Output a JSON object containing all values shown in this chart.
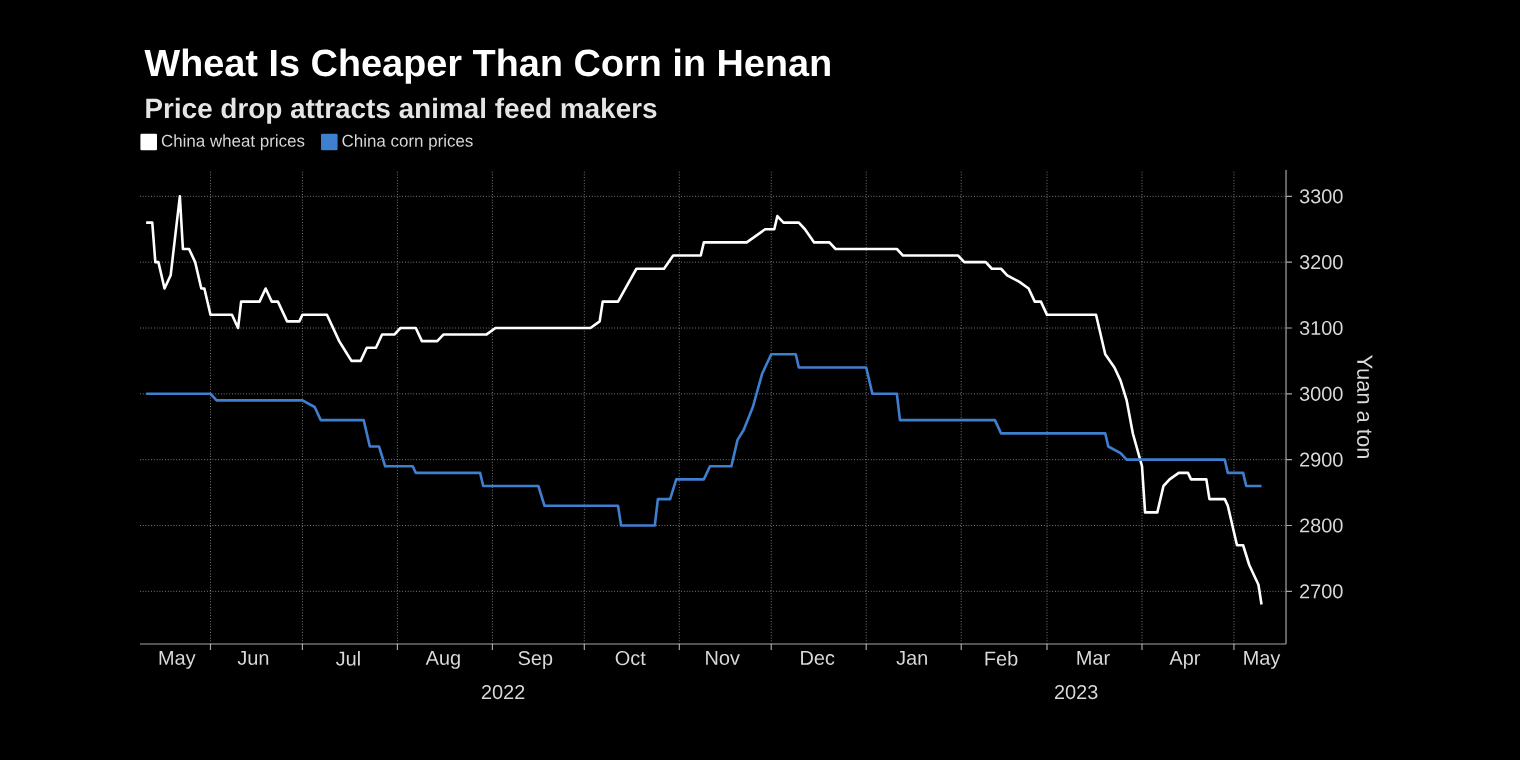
{
  "chart_data": {
    "type": "line",
    "title": "Wheat Is Cheaper Than Corn in Henan",
    "subtitle": "Price drop attracts animal feed makers",
    "ylabel": "Yuan a ton",
    "xlim": [
      "2022-05-09",
      "2023-05-18"
    ],
    "ylim": [
      2620,
      3340
    ],
    "yticks": [
      2700,
      2800,
      2900,
      3000,
      3100,
      3200,
      3300
    ],
    "xticks": [
      {
        "value": "2022-06-01",
        "label": null
      },
      {
        "value": "2022-07-01",
        "label": null
      },
      {
        "value": "2022-08-01",
        "label": null
      },
      {
        "value": "2022-09-01",
        "label": null
      },
      {
        "value": "2022-10-01",
        "label": null
      },
      {
        "value": "2022-11-01",
        "label": null
      },
      {
        "value": "2022-12-01",
        "label": null
      },
      {
        "value": "2023-01-01",
        "label": null
      },
      {
        "value": "2023-02-01",
        "label": null
      },
      {
        "value": "2023-03-01",
        "label": null
      },
      {
        "value": "2023-04-01",
        "label": null
      },
      {
        "value": "2023-05-01",
        "label": null
      },
      {
        "value": "2022-05-21",
        "label": "May"
      },
      {
        "value": "2022-06-15",
        "label": "Jun"
      },
      {
        "value": "2022-07-16",
        "label": "Jul"
      },
      {
        "value": "2022-08-16",
        "label": "Aug"
      },
      {
        "value": "2022-09-15",
        "label": "Sep"
      },
      {
        "value": "2022-10-16",
        "label": "Oct"
      },
      {
        "value": "2022-11-15",
        "label": "Nov"
      },
      {
        "value": "2022-12-16",
        "label": "Dec"
      },
      {
        "value": "2023-01-16",
        "label": "Jan"
      },
      {
        "value": "2023-02-14",
        "label": "Feb"
      },
      {
        "value": "2023-03-16",
        "label": "Mar"
      },
      {
        "value": "2023-04-15",
        "label": "Apr"
      },
      {
        "value": "2023-05-10",
        "label": "May"
      }
    ],
    "series": [
      {
        "name": "China wheat prices",
        "color": "#ffffff",
        "x": [
          "2022-05-11",
          "2022-05-13",
          "2022-05-14",
          "2022-05-15",
          "2022-05-17",
          "2022-05-19",
          "2022-05-22",
          "2022-05-23",
          "2022-05-25",
          "2022-05-27",
          "2022-05-29",
          "2022-05-30",
          "2022-06-01",
          "2022-06-08",
          "2022-06-10",
          "2022-06-11",
          "2022-06-17",
          "2022-06-19",
          "2022-06-21",
          "2022-06-23",
          "2022-06-26",
          "2022-06-30",
          "2022-07-01",
          "2022-07-09",
          "2022-07-13",
          "2022-07-15",
          "2022-07-17",
          "2022-07-20",
          "2022-07-22",
          "2022-07-25",
          "2022-07-27",
          "2022-07-31",
          "2022-08-02",
          "2022-08-07",
          "2022-08-09",
          "2022-08-14",
          "2022-08-16",
          "2022-08-30",
          "2022-09-02",
          "2022-10-03",
          "2022-10-06",
          "2022-10-07",
          "2022-10-12",
          "2022-10-15",
          "2022-10-18",
          "2022-10-27",
          "2022-10-30",
          "2022-11-08",
          "2022-11-09",
          "2022-11-23",
          "2022-11-26",
          "2022-11-29",
          "2022-12-02",
          "2022-12-03",
          "2022-12-05",
          "2022-12-10",
          "2022-12-12",
          "2022-12-15",
          "2022-12-20",
          "2022-12-22",
          "2023-01-11",
          "2023-01-13",
          "2023-01-31",
          "2023-02-02",
          "2023-02-09",
          "2023-02-11",
          "2023-02-14",
          "2023-02-16",
          "2023-02-20",
          "2023-02-23",
          "2023-02-25",
          "2023-02-27",
          "2023-03-01",
          "2023-03-17",
          "2023-03-20",
          "2023-03-23",
          "2023-03-25",
          "2023-03-27",
          "2023-03-29",
          "2023-04-01",
          "2023-04-02",
          "2023-04-06",
          "2023-04-08",
          "2023-04-10",
          "2023-04-13",
          "2023-04-16",
          "2023-04-17",
          "2023-04-22",
          "2023-04-23",
          "2023-04-28",
          "2023-04-29",
          "2023-05-02",
          "2023-05-04",
          "2023-05-06",
          "2023-05-09",
          "2023-05-10"
        ],
        "values": [
          3260,
          3260,
          3200,
          3200,
          3160,
          3180,
          3300,
          3220,
          3220,
          3200,
          3160,
          3160,
          3120,
          3120,
          3100,
          3140,
          3140,
          3160,
          3140,
          3140,
          3110,
          3110,
          3120,
          3120,
          3080,
          3065,
          3050,
          3050,
          3070,
          3070,
          3090,
          3090,
          3100,
          3100,
          3080,
          3080,
          3090,
          3090,
          3100,
          3100,
          3110,
          3140,
          3140,
          3165,
          3190,
          3190,
          3210,
          3210,
          3230,
          3230,
          3240,
          3250,
          3250,
          3270,
          3260,
          3260,
          3250,
          3230,
          3230,
          3220,
          3220,
          3210,
          3210,
          3200,
          3200,
          3190,
          3190,
          3180,
          3170,
          3160,
          3140,
          3140,
          3120,
          3120,
          3060,
          3040,
          3020,
          2990,
          2940,
          2890,
          2820,
          2820,
          2860,
          2870,
          2880,
          2880,
          2870,
          2870,
          2840,
          2840,
          2830,
          2770,
          2770,
          2740,
          2710,
          2680
        ]
      },
      {
        "name": "China corn prices",
        "color": "#3f7fd0",
        "x": [
          "2022-05-11",
          "2022-06-01",
          "2022-06-03",
          "2022-07-01",
          "2022-07-05",
          "2022-07-07",
          "2022-07-21",
          "2022-07-23",
          "2022-07-26",
          "2022-07-28",
          "2022-08-06",
          "2022-08-07",
          "2022-08-28",
          "2022-08-29",
          "2022-09-16",
          "2022-09-18",
          "2022-10-12",
          "2022-10-13",
          "2022-10-24",
          "2022-10-25",
          "2022-10-29",
          "2022-10-31",
          "2022-11-09",
          "2022-11-11",
          "2022-11-18",
          "2022-11-20",
          "2022-11-22",
          "2022-11-25",
          "2022-11-28",
          "2022-12-01",
          "2022-12-09",
          "2022-12-10",
          "2023-01-01",
          "2023-01-03",
          "2023-01-11",
          "2023-01-12",
          "2023-02-12",
          "2023-02-14",
          "2023-03-20",
          "2023-03-21",
          "2023-03-25",
          "2023-03-27",
          "2023-04-28",
          "2023-04-29",
          "2023-05-04",
          "2023-05-05",
          "2023-05-10"
        ],
        "values": [
          3000,
          3000,
          2990,
          2990,
          2980,
          2960,
          2960,
          2920,
          2920,
          2890,
          2890,
          2880,
          2880,
          2860,
          2860,
          2830,
          2830,
          2800,
          2800,
          2840,
          2840,
          2870,
          2870,
          2890,
          2890,
          2930,
          2945,
          2980,
          3030,
          3060,
          3060,
          3040,
          3040,
          3000,
          3000,
          2960,
          2960,
          2940,
          2940,
          2920,
          2910,
          2900,
          2900,
          2880,
          2880,
          2860,
          2860
        ]
      }
    ],
    "annotations": [
      "2022",
      "2023"
    ],
    "legend": "top left",
    "grid": true,
    "marker": "none",
    "line_style": "solid"
  }
}
